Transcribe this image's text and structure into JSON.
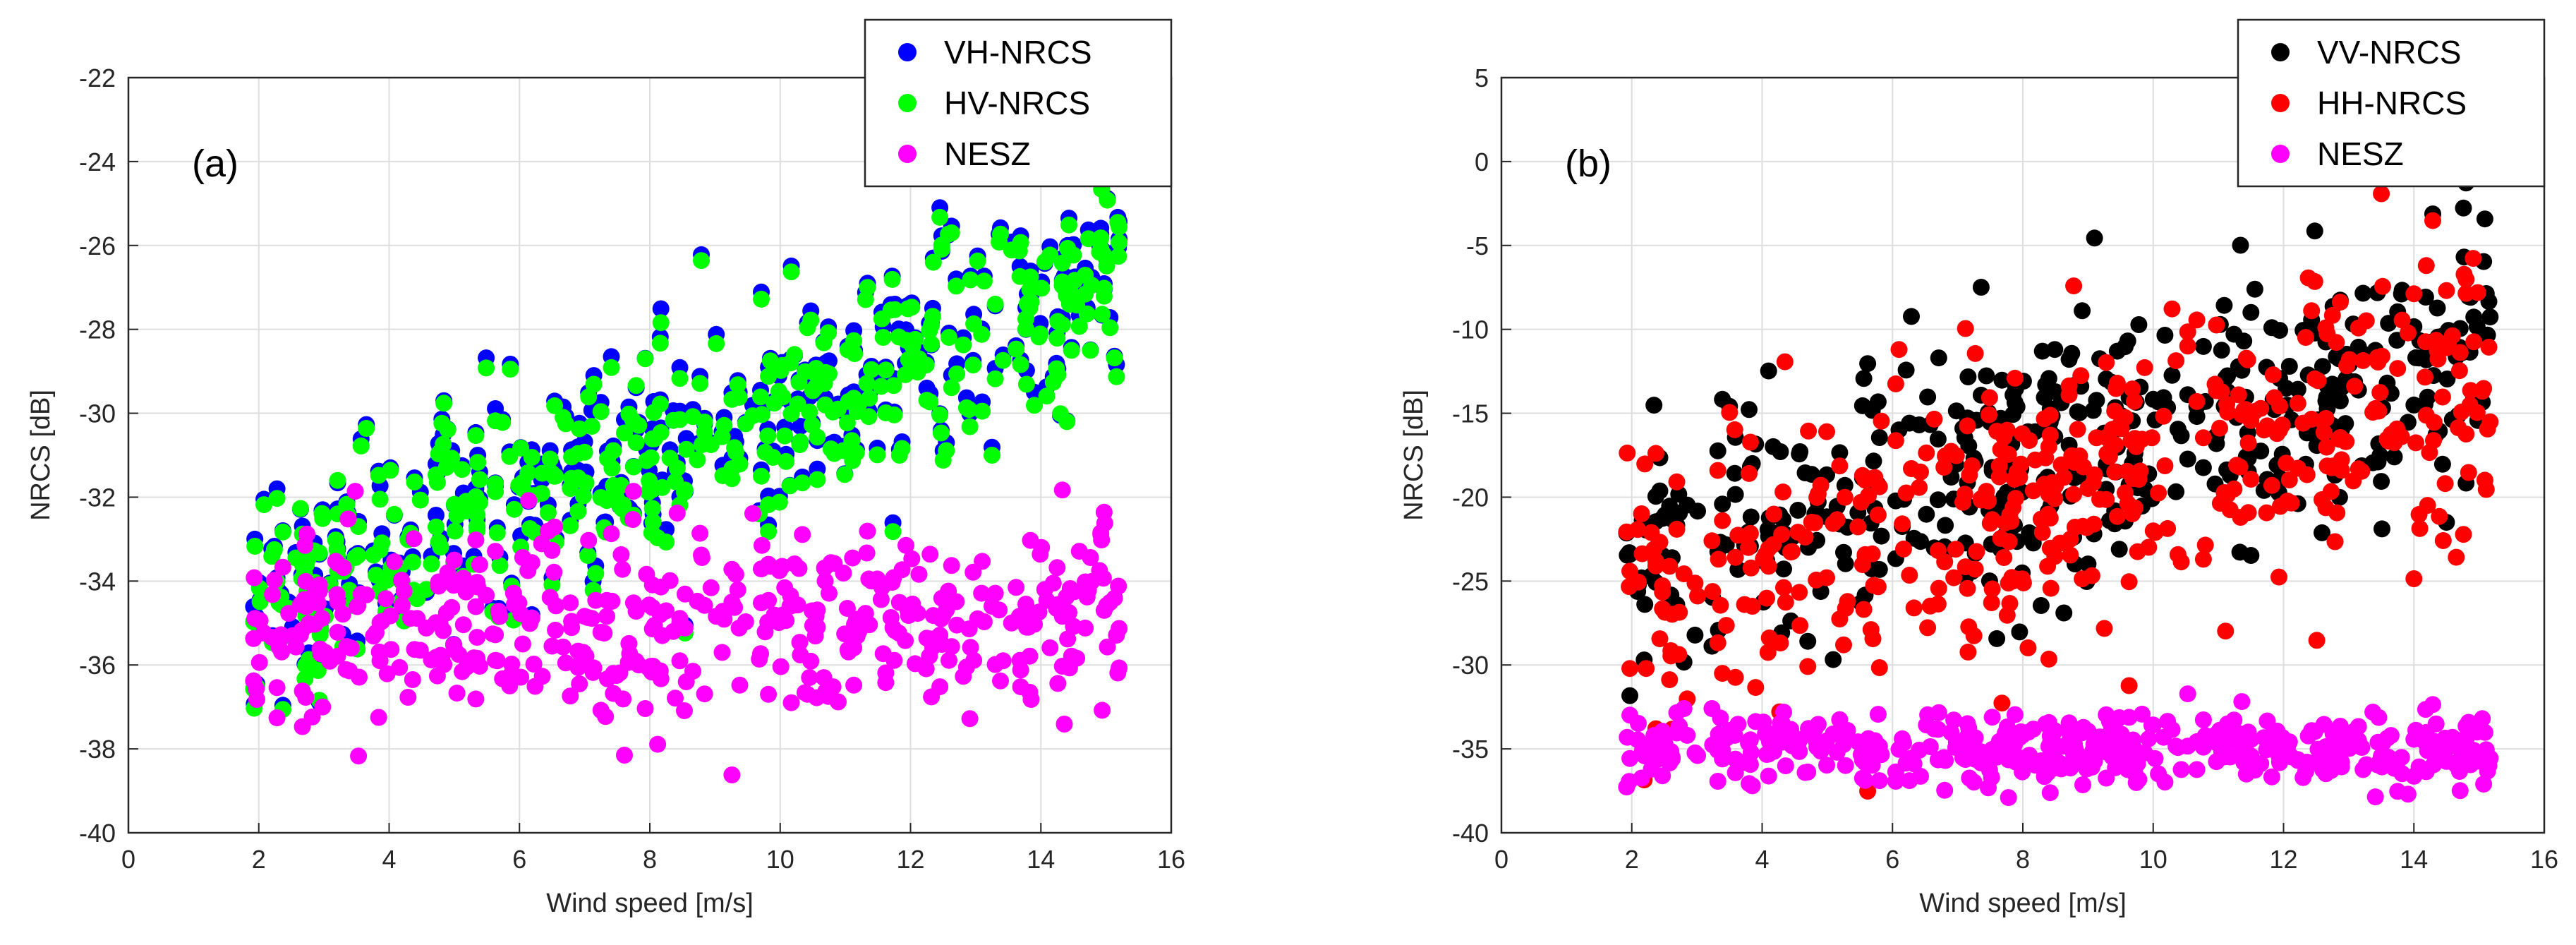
{
  "chart_data": [
    {
      "type": "scatter",
      "panel_label": "(a)",
      "xlabel": "Wind speed [m/s]",
      "ylabel": "NRCS [dB]",
      "xlim": [
        0,
        16
      ],
      "ylim": [
        -40,
        -22
      ],
      "xticks": [
        0,
        2,
        4,
        6,
        8,
        10,
        12,
        14,
        16
      ],
      "yticks": [
        -40,
        -38,
        -36,
        -34,
        -32,
        -30,
        -28,
        -26,
        -24,
        -22
      ],
      "grid": true,
      "legend_position": "top-right",
      "series": [
        {
          "name": "VH-NRCS",
          "color": "#0000ff",
          "trend": {
            "slope": 0.55,
            "intercept": -34.1,
            "spread": 1.4
          },
          "x": [],
          "y": []
        },
        {
          "name": "HV-NRCS",
          "color": "#00ff00",
          "trend": {
            "slope": 0.55,
            "intercept": -34.2,
            "spread": 1.4
          },
          "x": [],
          "y": []
        },
        {
          "name": "NESZ",
          "color": "#ff00ff",
          "trend": {
            "slope": 0.0,
            "intercept": -35.0,
            "spread": 1.2
          },
          "x": [],
          "y": []
        }
      ]
    },
    {
      "type": "scatter",
      "panel_label": "(b)",
      "xlabel": "Wind speed [m/s]",
      "ylabel": "NRCS [dB]",
      "xlim": [
        0,
        16
      ],
      "ylim": [
        -40,
        5
      ],
      "xticks": [
        0,
        2,
        4,
        6,
        8,
        10,
        12,
        14,
        16
      ],
      "yticks": [
        -40,
        -35,
        -30,
        -25,
        -20,
        -15,
        -10,
        -5,
        0,
        5
      ],
      "grid": true,
      "legend_position": "top-right",
      "series": [
        {
          "name": "VV-NRCS",
          "color": "#000000",
          "trend": {
            "slope": 0.95,
            "intercept": -23.5,
            "spread": 4.0
          },
          "x": [],
          "y": []
        },
        {
          "name": "HH-NRCS",
          "color": "#ff0000",
          "trend": {
            "slope": 0.95,
            "intercept": -25.5,
            "spread": 4.5
          },
          "x": [],
          "y": []
        },
        {
          "name": "NESZ",
          "color": "#ff00ff",
          "trend": {
            "slope": 0.0,
            "intercept": -35.0,
            "spread": 1.1
          },
          "x": [],
          "y": []
        }
      ]
    }
  ]
}
